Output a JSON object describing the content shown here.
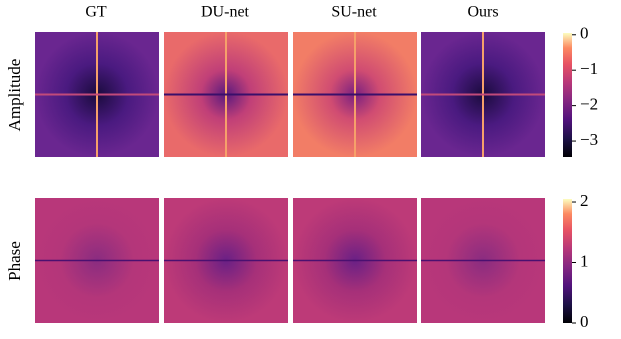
{
  "columns": [
    "GT",
    "DU-net",
    "SU-net",
    "Ours"
  ],
  "rows": [
    {
      "label": "Amplitude",
      "colorbar": {
        "lim": [
          -3.45,
          0.05
        ],
        "ticks": [
          0,
          {
            "value": -1,
            "label": "−1"
          },
          {
            "value": -2,
            "label": "−2"
          },
          {
            "value": -3,
            "label": "−3"
          }
        ]
      }
    },
    {
      "label": "Phase",
      "colorbar": {
        "lim": [
          0,
          2.05
        ],
        "ticks": [
          0,
          1,
          2
        ]
      }
    }
  ]
}
